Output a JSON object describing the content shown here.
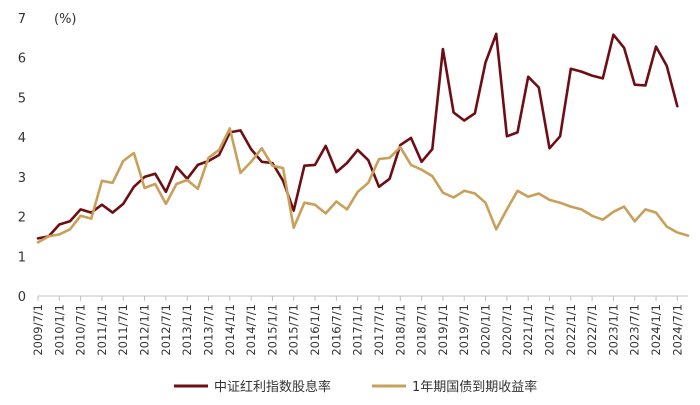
{
  "chart_data": {
    "type": "line",
    "unit_label": "(%)",
    "ylim": [
      0,
      7
    ],
    "yticks": [
      0,
      1,
      2,
      3,
      4,
      5,
      6,
      7
    ],
    "x_ticks": [
      "2009/7/1",
      "2010/1/1",
      "2010/7/1",
      "2011/1/1",
      "2011/7/1",
      "2012/1/1",
      "2012/7/1",
      "2013/1/1",
      "2013/7/1",
      "2014/1/1",
      "2014/7/1",
      "2015/1/1",
      "2015/7/1",
      "2016/1/1",
      "2016/7/1",
      "2017/1/1",
      "2017/7/1",
      "2018/1/1",
      "2018/7/1",
      "2019/1/1",
      "2019/7/1",
      "2020/1/1",
      "2020/7/1",
      "2021/1/1",
      "2021/7/1",
      "2022/1/1",
      "2022/7/1",
      "2023/1/1",
      "2023/7/1",
      "2024/1/1",
      "2024/7/1"
    ],
    "x_range": [
      "2009/7/1",
      "2024/10/1"
    ],
    "legend_position": "bottom",
    "grid": false,
    "series": [
      {
        "name": "中证红利指数股息率",
        "color": "#6e0e14",
        "points": [
          [
            "2009/7/1",
            1.45
          ],
          [
            "2009/10/1",
            1.5
          ],
          [
            "2010/1/1",
            1.8
          ],
          [
            "2010/4/1",
            1.88
          ],
          [
            "2010/7/1",
            2.18
          ],
          [
            "2010/10/1",
            2.1
          ],
          [
            "2011/1/1",
            2.3
          ],
          [
            "2011/4/1",
            2.1
          ],
          [
            "2011/7/1",
            2.32
          ],
          [
            "2011/10/1",
            2.75
          ],
          [
            "2012/1/1",
            3.0
          ],
          [
            "2012/4/1",
            3.08
          ],
          [
            "2012/7/1",
            2.62
          ],
          [
            "2012/10/1",
            3.25
          ],
          [
            "2013/1/1",
            2.95
          ],
          [
            "2013/4/1",
            3.3
          ],
          [
            "2013/7/1",
            3.4
          ],
          [
            "2013/10/1",
            3.55
          ],
          [
            "2014/1/1",
            4.12
          ],
          [
            "2014/4/1",
            4.17
          ],
          [
            "2014/7/1",
            3.7
          ],
          [
            "2014/10/1",
            3.38
          ],
          [
            "2015/1/1",
            3.35
          ],
          [
            "2015/4/1",
            2.9
          ],
          [
            "2015/7/1",
            2.15
          ],
          [
            "2015/10/1",
            3.28
          ],
          [
            "2016/1/1",
            3.3
          ],
          [
            "2016/4/1",
            3.78
          ],
          [
            "2016/7/1",
            3.12
          ],
          [
            "2016/10/1",
            3.35
          ],
          [
            "2017/1/1",
            3.68
          ],
          [
            "2017/4/1",
            3.42
          ],
          [
            "2017/7/1",
            2.75
          ],
          [
            "2017/10/1",
            2.95
          ],
          [
            "2018/1/1",
            3.8
          ],
          [
            "2018/4/1",
            3.98
          ],
          [
            "2018/7/1",
            3.38
          ],
          [
            "2018/10/1",
            3.7
          ],
          [
            "2019/1/1",
            6.22
          ],
          [
            "2019/4/1",
            4.62
          ],
          [
            "2019/7/1",
            4.42
          ],
          [
            "2019/10/1",
            4.6
          ],
          [
            "2020/1/1",
            5.88
          ],
          [
            "2020/4/1",
            6.6
          ],
          [
            "2020/7/1",
            4.02
          ],
          [
            "2020/10/1",
            4.12
          ],
          [
            "2021/1/1",
            5.52
          ],
          [
            "2021/4/1",
            5.25
          ],
          [
            "2021/7/1",
            3.72
          ],
          [
            "2021/10/1",
            4.02
          ],
          [
            "2022/1/1",
            5.72
          ],
          [
            "2022/4/1",
            5.65
          ],
          [
            "2022/7/1",
            5.55
          ],
          [
            "2022/10/1",
            5.48
          ],
          [
            "2023/1/1",
            6.58
          ],
          [
            "2023/4/1",
            6.25
          ],
          [
            "2023/7/1",
            5.32
          ],
          [
            "2023/10/1",
            5.3
          ],
          [
            "2024/1/1",
            6.28
          ],
          [
            "2024/4/1",
            5.8
          ],
          [
            "2024/7/1",
            4.78
          ]
        ]
      },
      {
        "name": "1年期国债到期收益率",
        "color": "#c9a05a",
        "points": [
          [
            "2009/7/1",
            1.35
          ],
          [
            "2009/10/1",
            1.5
          ],
          [
            "2010/1/1",
            1.55
          ],
          [
            "2010/4/1",
            1.68
          ],
          [
            "2010/7/1",
            2.02
          ],
          [
            "2010/10/1",
            1.95
          ],
          [
            "2011/1/1",
            2.9
          ],
          [
            "2011/4/1",
            2.85
          ],
          [
            "2011/7/1",
            3.4
          ],
          [
            "2011/10/1",
            3.6
          ],
          [
            "2012/1/1",
            2.72
          ],
          [
            "2012/4/1",
            2.82
          ],
          [
            "2012/7/1",
            2.32
          ],
          [
            "2012/10/1",
            2.82
          ],
          [
            "2013/1/1",
            2.92
          ],
          [
            "2013/4/1",
            2.7
          ],
          [
            "2013/7/1",
            3.48
          ],
          [
            "2013/10/1",
            3.68
          ],
          [
            "2014/1/1",
            4.22
          ],
          [
            "2014/4/1",
            3.1
          ],
          [
            "2014/7/1",
            3.38
          ],
          [
            "2014/10/1",
            3.72
          ],
          [
            "2015/1/1",
            3.28
          ],
          [
            "2015/4/1",
            3.22
          ],
          [
            "2015/7/1",
            1.72
          ],
          [
            "2015/10/1",
            2.35
          ],
          [
            "2016/1/1",
            2.3
          ],
          [
            "2016/4/1",
            2.08
          ],
          [
            "2016/7/1",
            2.38
          ],
          [
            "2016/10/1",
            2.18
          ],
          [
            "2017/1/1",
            2.62
          ],
          [
            "2017/4/1",
            2.85
          ],
          [
            "2017/7/1",
            3.45
          ],
          [
            "2017/10/1",
            3.48
          ],
          [
            "2018/1/1",
            3.75
          ],
          [
            "2018/4/1",
            3.3
          ],
          [
            "2018/7/1",
            3.18
          ],
          [
            "2018/10/1",
            3.02
          ],
          [
            "2019/1/1",
            2.6
          ],
          [
            "2019/4/1",
            2.48
          ],
          [
            "2019/7/1",
            2.65
          ],
          [
            "2019/10/1",
            2.58
          ],
          [
            "2020/1/1",
            2.35
          ],
          [
            "2020/4/1",
            1.68
          ],
          [
            "2020/7/1",
            2.18
          ],
          [
            "2020/10/1",
            2.65
          ],
          [
            "2021/1/1",
            2.5
          ],
          [
            "2021/4/1",
            2.58
          ],
          [
            "2021/7/1",
            2.42
          ],
          [
            "2021/10/1",
            2.35
          ],
          [
            "2022/1/1",
            2.25
          ],
          [
            "2022/4/1",
            2.18
          ],
          [
            "2022/7/1",
            2.02
          ],
          [
            "2022/10/1",
            1.92
          ],
          [
            "2023/1/1",
            2.12
          ],
          [
            "2023/4/1",
            2.25
          ],
          [
            "2023/7/1",
            1.88
          ],
          [
            "2023/10/1",
            2.18
          ],
          [
            "2024/1/1",
            2.1
          ],
          [
            "2024/4/1",
            1.75
          ],
          [
            "2024/7/1",
            1.6
          ],
          [
            "2024/10/1",
            1.52
          ]
        ]
      }
    ]
  }
}
